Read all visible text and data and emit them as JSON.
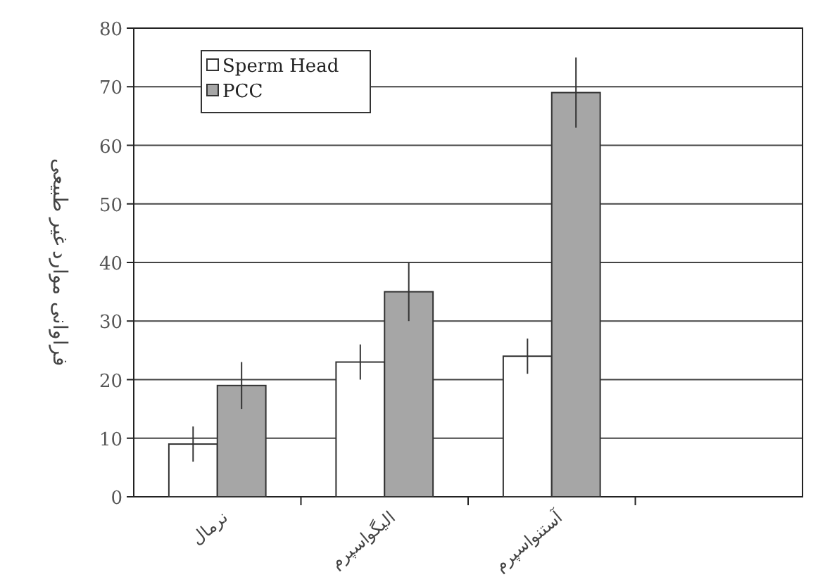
{
  "chart_data": {
    "type": "bar",
    "ylabel": "فراوانی موارد غیر طبیعی",
    "categories": [
      "نرمال",
      "الیگواسپرم",
      "آستنواسپرم"
    ],
    "series": [
      {
        "name": "Sperm Head",
        "color": "#ffffff",
        "values": [
          9,
          23,
          24
        ],
        "errors": [
          3,
          3,
          3
        ]
      },
      {
        "name": "PCC",
        "color": "#a6a6a6",
        "values": [
          19,
          35,
          69
        ],
        "errors": [
          4,
          5,
          6
        ]
      }
    ],
    "ylim": [
      0,
      80
    ],
    "yticks": [
      0,
      10,
      20,
      30,
      40,
      50,
      60,
      70,
      80
    ],
    "grid": "y",
    "legend": "top left"
  }
}
